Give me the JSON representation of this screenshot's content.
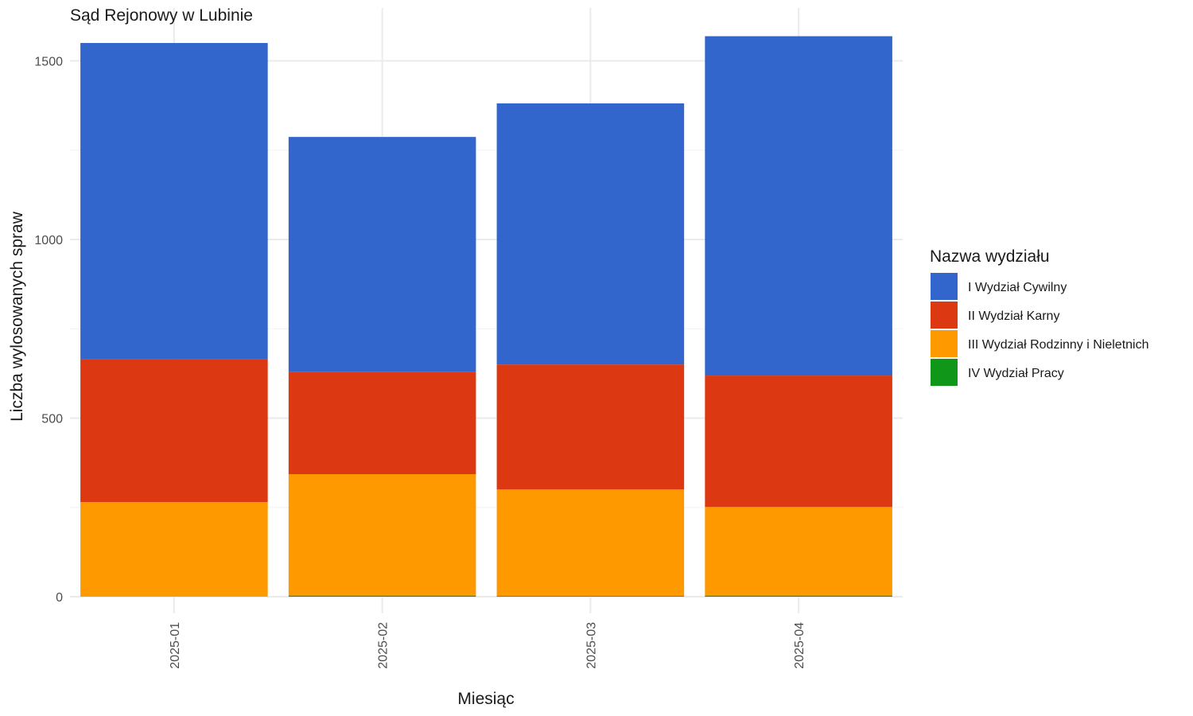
{
  "chart_data": {
    "type": "bar",
    "stacked": true,
    "title": "Sąd Rejonowy w Lubinie",
    "xlabel": "Miesiąc",
    "ylabel": "Liczba wylosowanych spraw",
    "categories": [
      "2025-01",
      "2025-02",
      "2025-03",
      "2025-04"
    ],
    "ylim": [
      0,
      1600
    ],
    "yticks": [
      0,
      500,
      1000,
      1500
    ],
    "grid": true,
    "legend": {
      "title": "Nazwa wydziału",
      "position": "right"
    },
    "series": [
      {
        "name": "IV Wydział Pracy",
        "color": "#109618",
        "values": [
          0,
          3,
          2,
          3
        ]
      },
      {
        "name": "III Wydział Rodzinny i Nieletnich",
        "color": "#FF9900",
        "values": [
          265,
          340,
          298,
          248
        ]
      },
      {
        "name": "II Wydział Karny",
        "color": "#DC3912",
        "values": [
          400,
          287,
          350,
          368
        ]
      },
      {
        "name": "I Wydział Cywilny",
        "color": "#3366CC",
        "values": [
          885,
          657,
          731,
          950
        ]
      }
    ],
    "legend_order": [
      "I Wydział Cywilny",
      "II Wydział Karny",
      "III Wydział Rodzinny i Nieletnich",
      "IV Wydział Pracy"
    ]
  }
}
